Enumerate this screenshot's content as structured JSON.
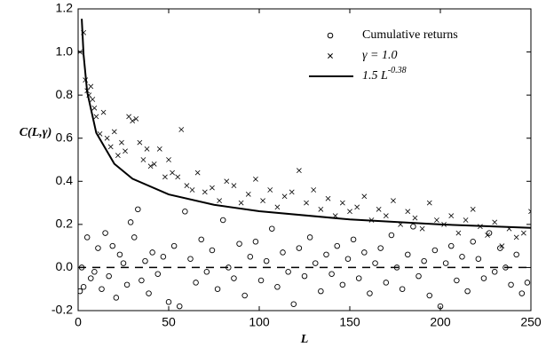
{
  "chart_data": {
    "type": "scatter",
    "x_label": "L",
    "y_label": "C(L,γ)",
    "xlim": [
      0,
      250
    ],
    "ylim": [
      -0.2,
      1.2
    ],
    "xticks": [
      0,
      50,
      100,
      150,
      200,
      250
    ],
    "yticks": [
      -0.2,
      {
        "value": 0,
        "label": "0.0"
      },
      0.2,
      0.4,
      0.6,
      0.8,
      {
        "value": 1,
        "label": "1.0"
      },
      1.2
    ],
    "reference_line": 0,
    "series": [
      {
        "name": "Cumulative returns",
        "marker": "circle",
        "color": "#000000",
        "x": [
          1,
          2,
          3,
          5,
          7,
          9,
          11,
          13,
          15,
          17,
          19,
          21,
          23,
          25,
          27,
          29,
          31,
          33,
          35,
          37,
          39,
          41,
          44,
          47,
          50,
          53,
          56,
          59,
          62,
          65,
          68,
          71,
          74,
          77,
          80,
          83,
          86,
          89,
          92,
          95,
          98,
          101,
          104,
          107,
          110,
          113,
          116,
          119,
          122,
          125,
          128,
          131,
          134,
          137,
          140,
          143,
          146,
          149,
          152,
          155,
          158,
          161,
          164,
          167,
          170,
          173,
          176,
          179,
          182,
          185,
          188,
          191,
          194,
          197,
          200,
          203,
          206,
          209,
          212,
          215,
          218,
          221,
          224,
          227,
          230,
          233,
          236,
          239,
          242,
          245,
          248
        ],
        "values": [
          -0.11,
          0.0,
          -0.09,
          0.14,
          -0.05,
          -0.02,
          0.09,
          -0.1,
          0.16,
          -0.04,
          0.1,
          -0.14,
          0.06,
          0.02,
          -0.08,
          0.21,
          0.14,
          0.27,
          -0.06,
          0.03,
          -0.12,
          0.07,
          -0.03,
          0.05,
          -0.16,
          0.1,
          -0.18,
          0.26,
          0.04,
          -0.07,
          0.13,
          -0.02,
          0.08,
          -0.1,
          0.22,
          0.0,
          -0.05,
          0.11,
          -0.13,
          0.05,
          0.12,
          -0.06,
          0.03,
          0.18,
          -0.09,
          0.07,
          -0.02,
          -0.17,
          0.09,
          -0.04,
          0.14,
          0.02,
          -0.11,
          0.06,
          -0.03,
          0.1,
          -0.08,
          0.04,
          0.13,
          -0.05,
          0.07,
          -0.12,
          0.02,
          0.09,
          -0.07,
          0.15,
          0.0,
          -0.1,
          0.06,
          0.19,
          -0.04,
          0.03,
          -0.13,
          0.08,
          -0.18,
          0.02,
          0.1,
          -0.06,
          0.05,
          -0.11,
          0.12,
          0.04,
          -0.05,
          0.16,
          -0.02,
          0.09,
          0.0,
          -0.08,
          0.06,
          -0.12,
          -0.07
        ]
      },
      {
        "name": "γ = 1.0",
        "marker": "cross",
        "color": "#000000",
        "x": [
          1,
          3,
          4,
          5,
          6,
          7,
          8,
          9,
          10,
          12,
          14,
          16,
          18,
          20,
          22,
          24,
          26,
          28,
          30,
          32,
          34,
          36,
          38,
          40,
          42,
          45,
          48,
          50,
          52,
          55,
          57,
          60,
          63,
          66,
          70,
          74,
          78,
          82,
          86,
          90,
          94,
          98,
          102,
          106,
          110,
          114,
          118,
          122,
          126,
          130,
          134,
          138,
          142,
          146,
          150,
          154,
          158,
          162,
          166,
          170,
          174,
          178,
          182,
          186,
          190,
          194,
          198,
          202,
          206,
          210,
          214,
          218,
          222,
          226,
          230,
          234,
          238,
          242,
          246,
          250
        ],
        "values": [
          1.0,
          1.09,
          0.87,
          0.82,
          0.8,
          0.84,
          0.78,
          0.74,
          0.7,
          0.62,
          0.72,
          0.6,
          0.56,
          0.63,
          0.52,
          0.58,
          0.54,
          0.7,
          0.68,
          0.69,
          0.58,
          0.5,
          0.55,
          0.47,
          0.48,
          0.55,
          0.42,
          0.5,
          0.44,
          0.42,
          0.64,
          0.38,
          0.36,
          0.44,
          0.35,
          0.37,
          0.31,
          0.4,
          0.38,
          0.3,
          0.34,
          0.41,
          0.31,
          0.36,
          0.28,
          0.33,
          0.35,
          0.45,
          0.3,
          0.36,
          0.27,
          0.32,
          0.24,
          0.3,
          0.26,
          0.28,
          0.33,
          0.22,
          0.27,
          0.24,
          0.31,
          0.2,
          0.26,
          0.23,
          0.18,
          0.3,
          0.22,
          0.2,
          0.24,
          0.16,
          0.22,
          0.27,
          0.19,
          0.15,
          0.21,
          0.1,
          0.18,
          0.14,
          0.16,
          0.26
        ]
      },
      {
        "name": "1.5 L",
        "name_exponent": "-0.38",
        "marker": "line",
        "color": "#000000",
        "x": [
          2,
          3,
          5,
          10,
          20,
          30,
          50,
          75,
          100,
          150,
          200,
          250
        ],
        "values": [
          1.154,
          0.988,
          0.814,
          0.625,
          0.481,
          0.412,
          0.339,
          0.291,
          0.261,
          0.223,
          0.2,
          0.184
        ]
      }
    ]
  }
}
